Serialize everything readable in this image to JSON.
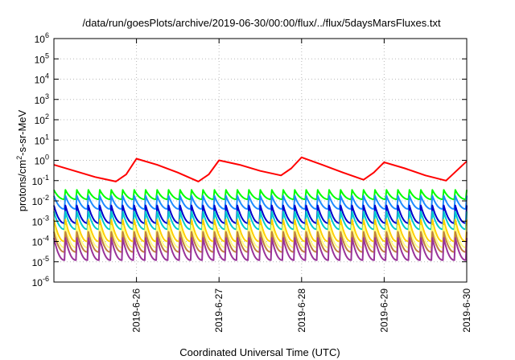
{
  "chart_data": {
    "type": "line",
    "title": "/data/run/goesPlots/archive/2019-06-30/00:00/flux/../flux/5daysMarsFluxes.txt",
    "xlabel": "Coordinated Universal Time (UTC)",
    "ylabel": "protons/cm²-s-sr-MeV",
    "ylabel_parts": {
      "pre": "protons/cm",
      "sup": "2",
      "post": "-s-sr-MeV"
    },
    "x_scale": "time",
    "xlim": [
      "2019-06-25T00:00",
      "2019-06-30T00:00"
    ],
    "x_ticks": [
      "2019-6-26",
      "2019-6-27",
      "2019-6-28",
      "2019-6-29",
      "2019-6-30"
    ],
    "y_scale": "log",
    "ylim": [
      1e-06,
      1000000.0
    ],
    "y_ticks": [
      {
        "base": "10",
        "exp": "-6"
      },
      {
        "base": "10",
        "exp": "-5"
      },
      {
        "base": "10",
        "exp": "-4"
      },
      {
        "base": "10",
        "exp": "-3"
      },
      {
        "base": "10",
        "exp": "-2"
      },
      {
        "base": "10",
        "exp": "-1"
      },
      {
        "base": "10",
        "exp": "0"
      },
      {
        "base": "10",
        "exp": "1"
      },
      {
        "base": "10",
        "exp": "2"
      },
      {
        "base": "10",
        "exp": "3"
      },
      {
        "base": "10",
        "exp": "4"
      },
      {
        "base": "10",
        "exp": "5"
      },
      {
        "base": "10",
        "exp": "6"
      }
    ],
    "grid": true,
    "legend": "none",
    "series": [
      {
        "color": "#ff0000",
        "values": [
          [
            "2019-06-25T00:00",
            0.6
          ],
          [
            "2019-06-25T06:00",
            0.3
          ],
          [
            "2019-06-25T12:00",
            0.15
          ],
          [
            "2019-06-25T18:00",
            0.09
          ],
          [
            "2019-06-25T21:00",
            0.2
          ],
          [
            "2019-06-26T00:00",
            1.2
          ],
          [
            "2019-06-26T06:00",
            0.6
          ],
          [
            "2019-06-26T12:00",
            0.25
          ],
          [
            "2019-06-26T18:00",
            0.09
          ],
          [
            "2019-06-26T21:00",
            0.2
          ],
          [
            "2019-06-27T00:00",
            1.0
          ],
          [
            "2019-06-27T06:00",
            0.6
          ],
          [
            "2019-06-27T12:00",
            0.3
          ],
          [
            "2019-06-27T18:00",
            0.18
          ],
          [
            "2019-06-27T21:00",
            0.4
          ],
          [
            "2019-06-28T00:00",
            1.4
          ],
          [
            "2019-06-28T06:00",
            0.6
          ],
          [
            "2019-06-28T12:00",
            0.25
          ],
          [
            "2019-06-28T18:00",
            0.11
          ],
          [
            "2019-06-28T21:00",
            0.25
          ],
          [
            "2019-06-29T00:00",
            0.8
          ],
          [
            "2019-06-29T06:00",
            0.4
          ],
          [
            "2019-06-29T12:00",
            0.18
          ],
          [
            "2019-06-29T18:00",
            0.1
          ],
          [
            "2019-06-29T21:00",
            0.3
          ],
          [
            "2019-06-30T00:00",
            0.9
          ]
        ]
      },
      {
        "color": "#00ff00",
        "min": 0.012,
        "max": 0.035
      },
      {
        "color": "#1e8cff",
        "min": 0.004,
        "max": 0.018
      },
      {
        "color": "#0000cc",
        "min": 0.0008,
        "max": 0.006
      },
      {
        "color": "#00cccc",
        "min": 0.0004,
        "max": 0.003
      },
      {
        "color": "#ffd000",
        "min": 0.0001,
        "max": 0.0012
      },
      {
        "color": "#ffff80",
        "min": 5e-05,
        "max": 0.0006
      },
      {
        "color": "#c08040",
        "min": 3e-05,
        "max": 0.0003
      },
      {
        "color": "#993399",
        "min": 1.2e-05,
        "max": 0.00015
      }
    ],
    "sawtooth_cycles": 36
  }
}
